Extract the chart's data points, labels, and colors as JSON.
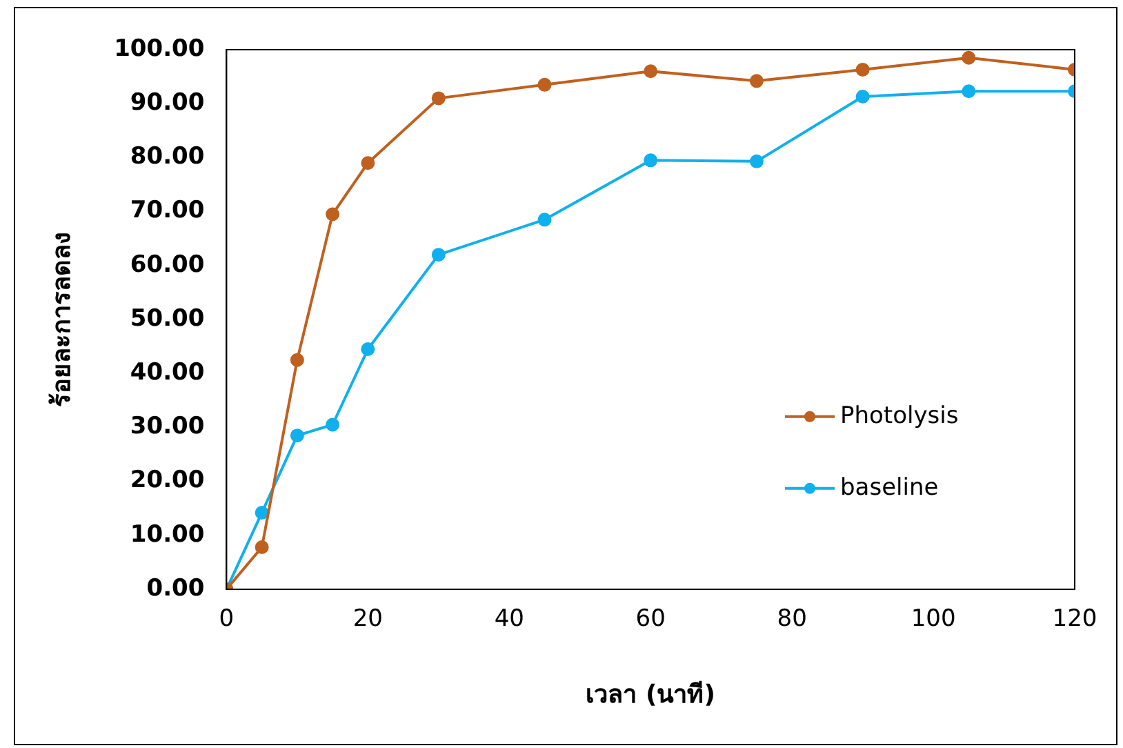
{
  "chart_data": {
    "type": "line",
    "xlabel": "เวลา (นาที)",
    "ylabel": "ร้อยละการลดลง",
    "x": [
      0,
      5,
      10,
      15,
      20,
      30,
      45,
      60,
      75,
      90,
      105,
      120
    ],
    "series": [
      {
        "name": "Photolysis",
        "color": "#c0601f",
        "values": [
          0,
          7.8,
          42.5,
          69.5,
          79,
          91,
          93.5,
          96,
          94.2,
          96.3,
          98.5,
          96.3
        ]
      },
      {
        "name": "baseline",
        "color": "#10b0ee",
        "values": [
          0,
          14.2,
          28.5,
          30.5,
          44.5,
          62,
          68.5,
          79.5,
          79.3,
          91.3,
          92.3,
          92.3
        ]
      }
    ],
    "xlim": [
      0,
      120
    ],
    "xticks": [
      0,
      20,
      40,
      60,
      80,
      100,
      120
    ],
    "ylim": [
      0,
      100
    ],
    "yticks": [
      {
        "value": 0,
        "label": "0.00"
      },
      {
        "value": 10,
        "label": "10.00"
      },
      {
        "value": 20,
        "label": "20.00"
      },
      {
        "value": 30,
        "label": "30.00"
      },
      {
        "value": 40,
        "label": "40.00"
      },
      {
        "value": 50,
        "label": "50.00"
      },
      {
        "value": 60,
        "label": "60.00"
      },
      {
        "value": 70,
        "label": "70.00"
      },
      {
        "value": 80,
        "label": "80.00"
      },
      {
        "value": 90,
        "label": "90.00"
      },
      {
        "value": 100,
        "label": "100.00"
      }
    ],
    "grid": false,
    "legend": "right",
    "marker": "circle",
    "line_style": "solid"
  }
}
